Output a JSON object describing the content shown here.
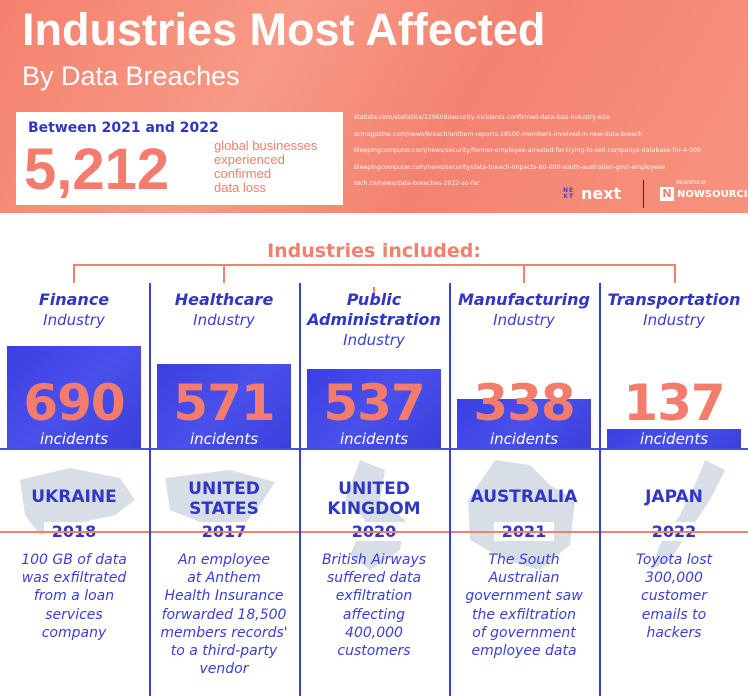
{
  "header": {
    "title": "Industries Most Affected",
    "subtitle": "By Data Breaches"
  },
  "stat": {
    "period": "Between 2021 and 2022",
    "value": "5,212",
    "description": "global businesses\nexperienced\nconfirmed\ndata loss"
  },
  "sources": [
    "statista.com/statistics/229608/security-incidents-confirmed-data-loss-industry-size",
    "scmagazine.com/news/breach/anthem-reports-18500-members-involved-in-new-data-breach",
    "bleepingcomputer.com/news/security/former-employee-arrested-for-trying-to-sell-companys-database-for-4-000",
    "bleepingcomputer.com/news/security/data-breach-impacts-80-000-south-australian-govt-employees",
    "tech.co/news/data-breaches-2022-so-far"
  ],
  "logos": {
    "next": "next",
    "nowsourcing_tag": "PRESENTED BY",
    "nowsourcing": "NOWSOURCING"
  },
  "section_label": "Industries included:",
  "colors": {
    "coral": "#f47c6c",
    "blue": "#3a3fd8",
    "map_gray": "#c9d3dc"
  },
  "chart_data": {
    "type": "bar",
    "categories": [
      "Finance",
      "Healthcare",
      "Public Administration",
      "Manufacturing",
      "Transportation"
    ],
    "values": [
      690,
      571,
      537,
      338,
      137
    ],
    "unit_label": "incidents"
  },
  "industries": [
    {
      "name": "Finance",
      "sub": "Industry",
      "value": "690",
      "unit": "incidents",
      "country": "UKRAINE",
      "year": "2018",
      "map": "ukraine-map",
      "desc": "100 GB of data\nwas exfiltrated\nfrom a loan\nservices\ncompany"
    },
    {
      "name": "Healthcare",
      "sub": "Industry",
      "value": "571",
      "unit": "incidents",
      "country": "UNITED\nSTATES",
      "year": "2017",
      "map": "usa-map",
      "desc": "An employee\nat Anthem\nHealth Insurance\nforwarded 18,500\nmembers records'\nto a third-party\nvendor"
    },
    {
      "name": "Public\nAdministration",
      "sub": "Industry",
      "value": "537",
      "unit": "incidents",
      "country": "UNITED\nKINGDOM",
      "year": "2020",
      "map": "uk-map",
      "desc": "British Airways\nsuffered data\nexfiltration\naffecting\n400,000\ncustomers"
    },
    {
      "name": "Manufacturing",
      "sub": "Industry",
      "value": "338",
      "unit": "incidents",
      "country": "AUSTRALIA",
      "year": "2021",
      "map": "australia-map",
      "desc": "The South\nAustralian\ngovernment saw\nthe exfiltration\nof government\nemployee data"
    },
    {
      "name": "Transportation",
      "sub": "Industry",
      "value": "137",
      "unit": "incidents",
      "country": "JAPAN",
      "year": "2022",
      "map": "japan-map",
      "desc": "Toyota lost\n300,000\ncustomer\nemails to\nhackers"
    }
  ]
}
